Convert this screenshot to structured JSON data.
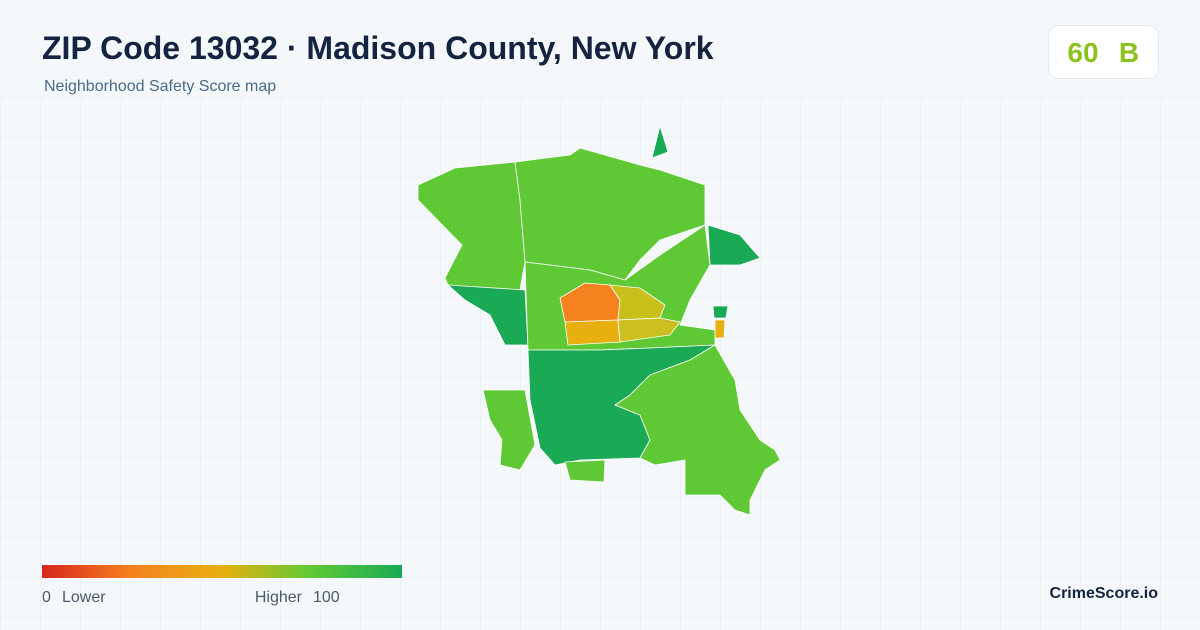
{
  "header": {
    "title": "ZIP Code 13032 · Madison County, New York",
    "subtitle": "Neighborhood Safety Score map"
  },
  "score": {
    "value": 60,
    "grade": "B"
  },
  "legend": {
    "min": 0,
    "min_label": "Lower",
    "max_label": "Higher",
    "max": 100
  },
  "brand": "CrimeScore.io"
}
